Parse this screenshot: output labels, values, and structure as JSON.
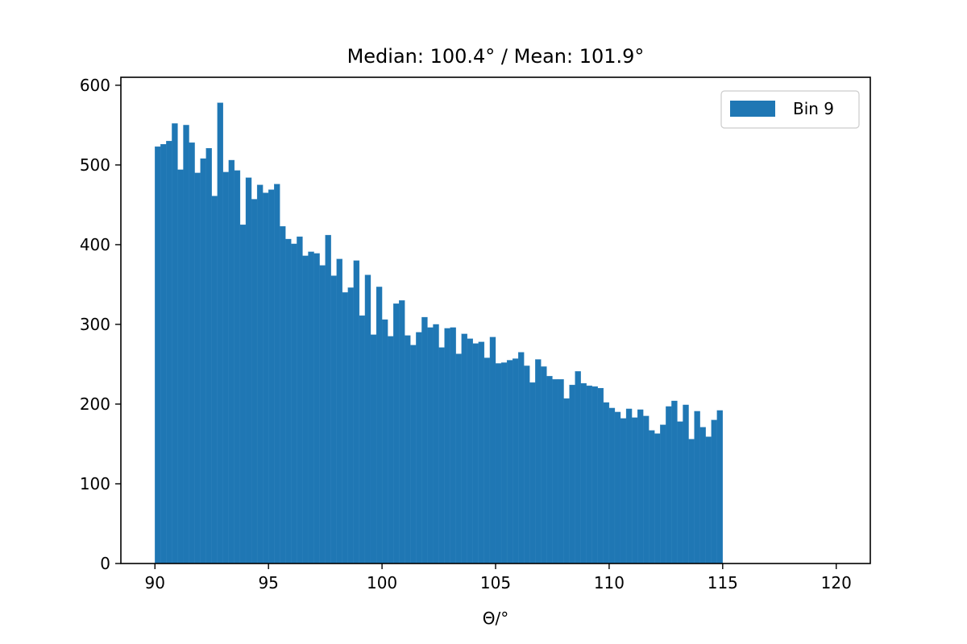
{
  "chart_data": {
    "type": "bar",
    "title": "Median: 100.4° / Mean: 101.9°",
    "xlabel": "Θ/°",
    "ylabel": "",
    "xlim": [
      88.5,
      121.5
    ],
    "ylim": [
      0,
      610
    ],
    "x_ticks": [
      90,
      95,
      100,
      105,
      110,
      115,
      120
    ],
    "y_ticks": [
      0,
      100,
      200,
      300,
      400,
      500,
      600
    ],
    "bin_start": 90,
    "bin_width": 0.25,
    "grid": false,
    "legend_position": "top-right",
    "series": [
      {
        "name": "Bin 9",
        "color": "#1f77b4",
        "values": [
          523,
          526,
          530,
          552,
          494,
          550,
          528,
          490,
          508,
          521,
          461,
          578,
          491,
          506,
          493,
          425,
          484,
          457,
          475,
          465,
          469,
          476,
          423,
          407,
          401,
          410,
          386,
          391,
          389,
          374,
          412,
          361,
          382,
          340,
          346,
          380,
          311,
          362,
          287,
          347,
          306,
          285,
          326,
          330,
          286,
          274,
          290,
          309,
          296,
          300,
          271,
          295,
          296,
          263,
          288,
          282,
          276,
          278,
          258,
          284,
          251,
          252,
          255,
          257,
          265,
          248,
          227,
          256,
          247,
          235,
          231,
          231,
          207,
          224,
          241,
          226,
          223,
          222,
          220,
          202,
          195,
          190,
          182,
          194,
          183,
          193,
          185,
          167,
          163,
          174,
          197,
          204,
          178,
          199,
          156,
          191,
          171,
          159,
          180,
          192
        ]
      }
    ]
  }
}
